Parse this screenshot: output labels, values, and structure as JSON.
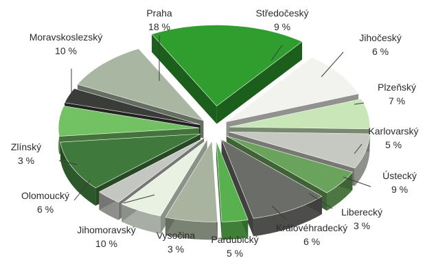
{
  "chart_data": {
    "type": "pie",
    "style": "exploded-3d",
    "unit": "%",
    "title": "",
    "slices": [
      {
        "name": "Praha",
        "value": 18,
        "label": "18 %",
        "color": "#2f9e2f"
      },
      {
        "name": "Středočeský",
        "value": 9,
        "label": "9 %",
        "color": "#f2f2ee"
      },
      {
        "name": "Jihočeský",
        "value": 6,
        "label": "6 %",
        "color": "#c8e6b8"
      },
      {
        "name": "Plzeňský",
        "value": 7,
        "label": "7 %",
        "color": "#c6c8c2"
      },
      {
        "name": "Karlovarský",
        "value": 5,
        "label": "5 %",
        "color": "#6aa45c"
      },
      {
        "name": "Ústecký",
        "value": 9,
        "label": "9 %",
        "color": "#6b6d68"
      },
      {
        "name": "Liberecký",
        "value": 3,
        "label": "3 %",
        "color": "#59b04e"
      },
      {
        "name": "Královéhradecký",
        "value": 6,
        "label": "6 %",
        "color": "#a8b4a0"
      },
      {
        "name": "Pardubický",
        "value": 5,
        "label": "5 %",
        "color": "#e9f2e2"
      },
      {
        "name": "Vysočina",
        "value": 3,
        "label": "3 %",
        "color": "#c4c6c1"
      },
      {
        "name": "Jihomoravský",
        "value": 10,
        "label": "10 %",
        "color": "#3f7a3c"
      },
      {
        "name": "Olomoucký",
        "value": 6,
        "label": "6 %",
        "color": "#72c163"
      },
      {
        "name": "Zlínský",
        "value": 3,
        "label": "3 %",
        "color": "#3a3c39"
      },
      {
        "name": "Moravskoslezský",
        "value": 10,
        "label": "10 %",
        "color": "#a9b7a2"
      }
    ]
  }
}
